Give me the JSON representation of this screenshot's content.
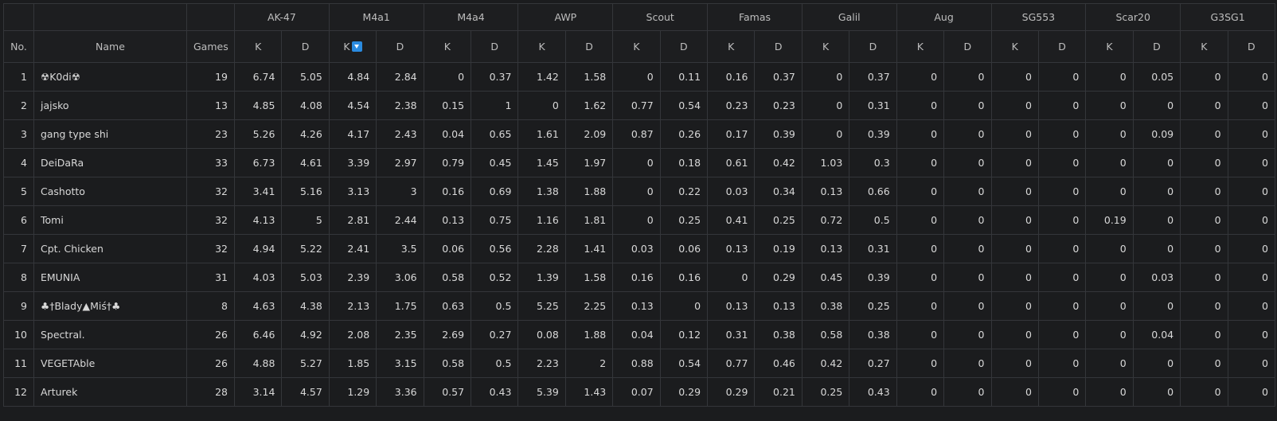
{
  "headers": {
    "no": "No.",
    "name": "Name",
    "games": "Games",
    "k": "K",
    "d": "D",
    "weapons": [
      "AK-47",
      "M4a1",
      "M4a4",
      "AWP",
      "Scout",
      "Famas",
      "Galil",
      "Aug",
      "SG553",
      "Scar20",
      "G3SG1"
    ]
  },
  "sort": {
    "weapon": "M4a1",
    "stat": "K",
    "direction": "descending",
    "icon": "sort-desc-icon"
  },
  "rows": [
    {
      "no": "1",
      "name": "☢K0di☢",
      "games": "19",
      "stats": [
        "6.74",
        "5.05",
        "4.84",
        "2.84",
        "0",
        "0.37",
        "1.42",
        "1.58",
        "0",
        "0.11",
        "0.16",
        "0.37",
        "0",
        "0.37",
        "0",
        "0",
        "0",
        "0",
        "0",
        "0.05",
        "0",
        "0"
      ]
    },
    {
      "no": "2",
      "name": "jajsko",
      "games": "13",
      "stats": [
        "4.85",
        "4.08",
        "4.54",
        "2.38",
        "0.15",
        "1",
        "0",
        "1.62",
        "0.77",
        "0.54",
        "0.23",
        "0.23",
        "0",
        "0.31",
        "0",
        "0",
        "0",
        "0",
        "0",
        "0",
        "0",
        "0"
      ]
    },
    {
      "no": "3",
      "name": "gang type shi",
      "games": "23",
      "stats": [
        "5.26",
        "4.26",
        "4.17",
        "2.43",
        "0.04",
        "0.65",
        "1.61",
        "2.09",
        "0.87",
        "0.26",
        "0.17",
        "0.39",
        "0",
        "0.39",
        "0",
        "0",
        "0",
        "0",
        "0",
        "0.09",
        "0",
        "0"
      ]
    },
    {
      "no": "4",
      "name": "DeiDaRa",
      "games": "33",
      "stats": [
        "6.73",
        "4.61",
        "3.39",
        "2.97",
        "0.79",
        "0.45",
        "1.45",
        "1.97",
        "0",
        "0.18",
        "0.61",
        "0.42",
        "1.03",
        "0.3",
        "0",
        "0",
        "0",
        "0",
        "0",
        "0",
        "0",
        "0"
      ]
    },
    {
      "no": "5",
      "name": "Cashotto",
      "games": "32",
      "stats": [
        "3.41",
        "5.16",
        "3.13",
        "3",
        "0.16",
        "0.69",
        "1.38",
        "1.88",
        "0",
        "0.22",
        "0.03",
        "0.34",
        "0.13",
        "0.66",
        "0",
        "0",
        "0",
        "0",
        "0",
        "0",
        "0",
        "0"
      ]
    },
    {
      "no": "6",
      "name": "Tomi",
      "games": "32",
      "stats": [
        "4.13",
        "5",
        "2.81",
        "2.44",
        "0.13",
        "0.75",
        "1.16",
        "1.81",
        "0",
        "0.25",
        "0.41",
        "0.25",
        "0.72",
        "0.5",
        "0",
        "0",
        "0",
        "0",
        "0.19",
        "0",
        "0",
        "0"
      ]
    },
    {
      "no": "7",
      "name": "Cpt. Chicken",
      "games": "32",
      "stats": [
        "4.94",
        "5.22",
        "2.41",
        "3.5",
        "0.06",
        "0.56",
        "2.28",
        "1.41",
        "0.03",
        "0.06",
        "0.13",
        "0.19",
        "0.13",
        "0.31",
        "0",
        "0",
        "0",
        "0",
        "0",
        "0",
        "0",
        "0"
      ]
    },
    {
      "no": "8",
      "name": "EMUNIA",
      "games": "31",
      "stats": [
        "4.03",
        "5.03",
        "2.39",
        "3.06",
        "0.58",
        "0.52",
        "1.39",
        "1.58",
        "0.16",
        "0.16",
        "0",
        "0.29",
        "0.45",
        "0.39",
        "0",
        "0",
        "0",
        "0",
        "0",
        "0.03",
        "0",
        "0"
      ]
    },
    {
      "no": "9",
      "name": "♣†Blady▲Miś†♣",
      "games": "8",
      "stats": [
        "4.63",
        "4.38",
        "2.13",
        "1.75",
        "0.63",
        "0.5",
        "5.25",
        "2.25",
        "0.13",
        "0",
        "0.13",
        "0.13",
        "0.38",
        "0.25",
        "0",
        "0",
        "0",
        "0",
        "0",
        "0",
        "0",
        "0"
      ]
    },
    {
      "no": "10",
      "name": "Spectral.",
      "games": "26",
      "stats": [
        "6.46",
        "4.92",
        "2.08",
        "2.35",
        "2.69",
        "0.27",
        "0.08",
        "1.88",
        "0.04",
        "0.12",
        "0.31",
        "0.38",
        "0.58",
        "0.38",
        "0",
        "0",
        "0",
        "0",
        "0",
        "0.04",
        "0",
        "0"
      ]
    },
    {
      "no": "11",
      "name": "VEGETAble",
      "games": "26",
      "stats": [
        "4.88",
        "5.27",
        "1.85",
        "3.15",
        "0.58",
        "0.5",
        "2.23",
        "2",
        "0.88",
        "0.54",
        "0.77",
        "0.46",
        "0.42",
        "0.27",
        "0",
        "0",
        "0",
        "0",
        "0",
        "0",
        "0",
        "0"
      ]
    },
    {
      "no": "12",
      "name": "Arturek",
      "games": "28",
      "stats": [
        "3.14",
        "4.57",
        "1.29",
        "3.36",
        "0.57",
        "0.43",
        "5.39",
        "1.43",
        "0.07",
        "0.29",
        "0.29",
        "0.21",
        "0.25",
        "0.43",
        "0",
        "0",
        "0",
        "0",
        "0",
        "0",
        "0",
        "0"
      ]
    }
  ]
}
